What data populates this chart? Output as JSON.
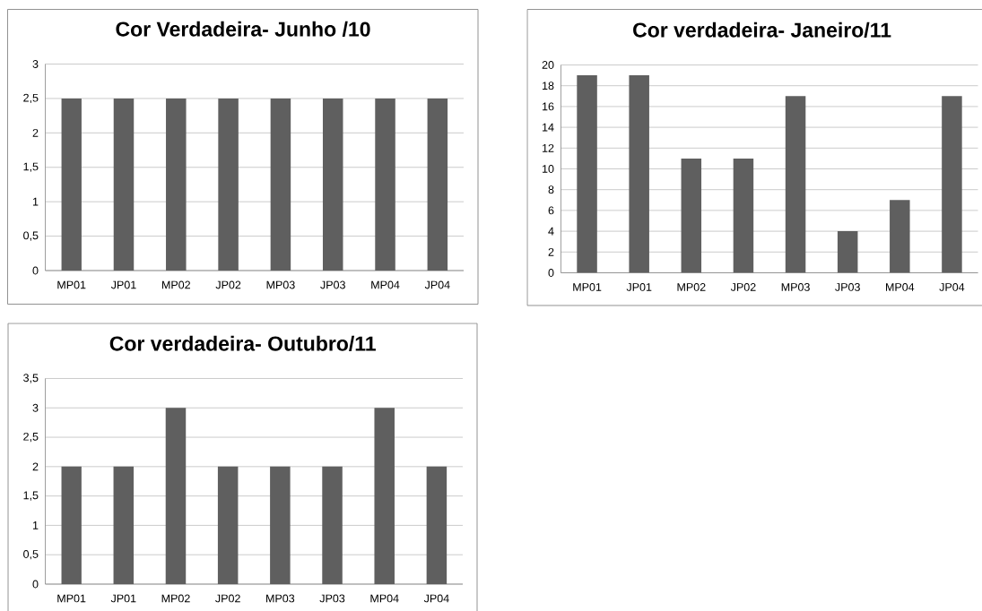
{
  "chart_data": [
    {
      "type": "bar",
      "title": "Cor Verdadeira- Junho /10",
      "categories": [
        "MP01",
        "JP01",
        "MP02",
        "JP02",
        "MP03",
        "JP03",
        "MP04",
        "JP04"
      ],
      "values": [
        2.5,
        2.5,
        2.5,
        2.5,
        2.5,
        2.5,
        2.5,
        2.5
      ],
      "color": "#5f5f5f",
      "ylim": [
        0,
        3
      ],
      "yticks": [
        0,
        {
          "value": 0.5,
          "label": "0,5"
        },
        1,
        {
          "value": 1.5,
          "label": "1,5"
        },
        2,
        {
          "value": 2.5,
          "label": "2,5"
        },
        3
      ],
      "grid": "y"
    },
    {
      "type": "bar",
      "title": "Cor verdadeira- Janeiro/11",
      "categories": [
        "MP01",
        "JP01",
        "MP02",
        "JP02",
        "MP03",
        "JP03",
        "MP04",
        "JP04"
      ],
      "values": [
        19,
        19,
        11,
        11,
        17,
        4,
        7,
        17
      ],
      "color": "#5f5f5f",
      "ylim": [
        0,
        20
      ],
      "yticks": [
        0,
        2,
        4,
        6,
        8,
        10,
        12,
        14,
        16,
        18,
        20
      ],
      "grid": "y"
    },
    {
      "type": "bar",
      "title": "Cor verdadeira- Outubro/11",
      "categories": [
        "MP01",
        "JP01",
        "MP02",
        "JP02",
        "MP03",
        "JP03",
        "MP04",
        "JP04"
      ],
      "values": [
        2,
        2,
        3,
        2,
        2,
        2,
        3,
        2
      ],
      "color": "#5f5f5f",
      "ylim": [
        0,
        3.5
      ],
      "yticks": [
        0,
        {
          "value": 0.5,
          "label": "0,5"
        },
        1,
        {
          "value": 1.5,
          "label": "1,5"
        },
        2,
        {
          "value": 2.5,
          "label": "2,5"
        },
        3,
        {
          "value": 3.5,
          "label": "3,5"
        }
      ],
      "grid": "y"
    }
  ]
}
